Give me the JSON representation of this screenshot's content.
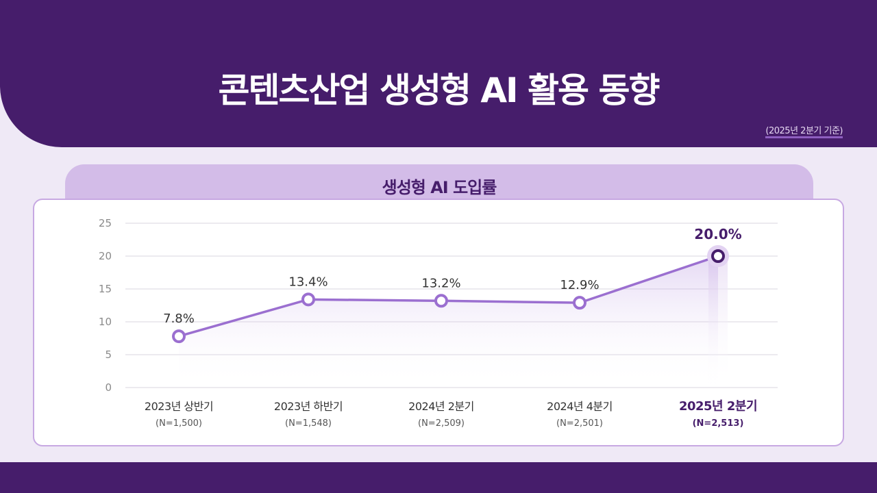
{
  "header": {
    "title": "콘텐츠산업 생성형 AI 활용 동향",
    "basis": "(2025년 2분기 기준)"
  },
  "colors": {
    "primary": "#461d6b",
    "line": "#9b6fd0",
    "highlight": "#461d6b"
  },
  "chart_data": {
    "type": "line",
    "title": "생성형 AI 도입률",
    "categories": [
      "2023년 상반기",
      "2023년 하반기",
      "2024년 2분기",
      "2024년 4분기",
      "2025년 2분기"
    ],
    "sample_sizes": [
      "(N=1,500)",
      "(N=1,548)",
      "(N=2,509)",
      "(N=2,501)",
      "(N=2,513)"
    ],
    "values": [
      7.8,
      13.4,
      13.2,
      12.9,
      20.0
    ],
    "data_labels": [
      "7.8%",
      "13.4%",
      "13.2%",
      "12.9%",
      "20.0%"
    ],
    "yticks": [
      0,
      5,
      10,
      15,
      20,
      25
    ],
    "ylim": [
      0,
      25
    ],
    "grid": true,
    "highlighted_index": 4
  }
}
